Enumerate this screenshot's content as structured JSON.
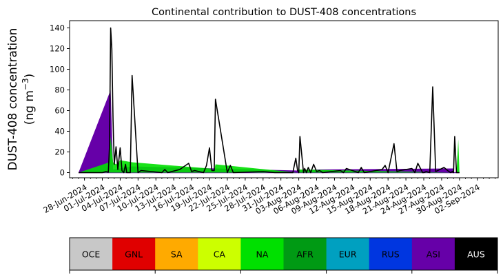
{
  "chart_data": {
    "type": "area",
    "title": "Continental contribution to DUST-408 concentrations",
    "ylabel_line1": "DUST-408 concentration",
    "ylabel_line2": "(ng m",
    "ylabel_unit_exp": "−3",
    "ylabel_close": ")",
    "ylim": [
      -5,
      147
    ],
    "yticks": [
      0,
      20,
      40,
      60,
      80,
      100,
      120,
      140
    ],
    "x_start": "2024-06-27",
    "xlim_days": [
      -1.5,
      70.5
    ],
    "xtick_labels": [
      "28-Jun-2024",
      "01-Jul-2024",
      "04-Jul-2024",
      "07-Jul-2024",
      "10-Jul-2024",
      "13-Jul-2024",
      "16-Jul-2024",
      "19-Jul-2024",
      "22-Jul-2024",
      "25-Jul-2024",
      "28-Jul-2024",
      "31-Jul-2024",
      "03-Aug-2024",
      "06-Aug-2024",
      "09-Aug-2024",
      "12-Aug-2024",
      "15-Aug-2024",
      "18-Aug-2024",
      "21-Aug-2024",
      "24-Aug-2024",
      "27-Aug-2024",
      "30-Aug-2024",
      "02-Sep-2024"
    ],
    "xtick_days": [
      1,
      4,
      7,
      10,
      13,
      16,
      19,
      22,
      25,
      28,
      31,
      34,
      37,
      40,
      43,
      46,
      49,
      52,
      55,
      58,
      61,
      64,
      67
    ],
    "grid": false,
    "legend_placement": "bottom",
    "series_total": {
      "x_days": [
        0,
        4,
        4.6,
        5.0,
        5.2,
        5.4,
        5.6,
        5.8,
        6.0,
        6.3,
        6.6,
        7.0,
        7.3,
        7.6,
        7.9,
        8.1,
        8.3,
        8.5,
        8.7,
        9,
        10,
        10.5,
        14,
        14.5,
        15,
        17,
        18.5,
        19,
        19.5,
        21,
        21.5,
        22,
        22.4,
        22.8,
        23,
        25,
        25.5,
        26,
        31,
        33,
        36,
        36.5,
        36.8,
        37,
        37.2,
        37.8,
        38,
        38.3,
        38.6,
        39,
        39.5,
        40,
        40.5,
        41,
        44,
        44.5,
        45,
        47,
        47.5,
        48,
        51,
        51.5,
        52,
        53,
        53.5,
        54,
        56,
        56.5,
        57,
        57.8,
        58,
        58.4,
        59,
        59.5,
        60,
        61.4,
        62,
        62.5,
        62.8,
        63,
        63.2,
        63.5,
        63.8,
        64
      ],
      "y": [
        0,
        0,
        1,
        0.5,
        25,
        140,
        120,
        50,
        8,
        25,
        3,
        24,
        2,
        0,
        8,
        0,
        0,
        0,
        0,
        94,
        0,
        2,
        0,
        3,
        0,
        3,
        9,
        1,
        2,
        0,
        7,
        24,
        2,
        2,
        71,
        0,
        7,
        0,
        1,
        0,
        0,
        14,
        2,
        0,
        35,
        0,
        4,
        0,
        5,
        0,
        8,
        1,
        2,
        0,
        2,
        0,
        4,
        0,
        5,
        0,
        3,
        7,
        0,
        28,
        1,
        2,
        4,
        0,
        9,
        0,
        0,
        1,
        0,
        83,
        1,
        5,
        2,
        0,
        1,
        0,
        35,
        0,
        0,
        0
      ]
    },
    "series_na": {
      "x_days": [
        0,
        5.2,
        5.4,
        5.8,
        6.3,
        7.0,
        9,
        22,
        22.8,
        23,
        36.8,
        37,
        63.5,
        63.8,
        64
      ],
      "y": [
        0,
        10,
        35,
        10,
        8,
        12,
        10,
        4,
        2,
        8,
        0,
        3,
        0,
        32,
        0
      ]
    },
    "series_asi": {
      "x_days": [
        0,
        5.4,
        5.8,
        9,
        37,
        40,
        63
      ],
      "y": [
        0,
        80,
        3,
        6,
        2,
        3,
        4
      ]
    },
    "legend": [
      {
        "name": "OCE",
        "color": "#c8c8c8"
      },
      {
        "name": "GNL",
        "color": "#e00000"
      },
      {
        "name": "SA",
        "color": "#ffaa00"
      },
      {
        "name": "CA",
        "color": "#ccff00"
      },
      {
        "name": "NA",
        "color": "#00e000"
      },
      {
        "name": "AFR",
        "color": "#009a14"
      },
      {
        "name": "EUR",
        "color": "#00a0c0"
      },
      {
        "name": "RUS",
        "color": "#0036e0"
      },
      {
        "name": "ASI",
        "color": "#6600a8"
      },
      {
        "name": "AUS",
        "color": "#000000"
      }
    ]
  }
}
